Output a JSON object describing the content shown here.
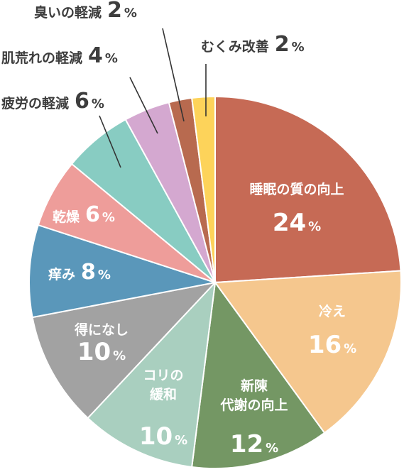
{
  "chart_data": {
    "type": "pie",
    "categories": [
      "睡眠の質の向上",
      "冷え",
      "新陳代謝の向上",
      "コリの緩和",
      "得になし",
      "痒み",
      "乾燥",
      "疲労の軽減",
      "肌荒れの軽減",
      "臭いの軽減",
      "むくみ改善"
    ],
    "values": [
      24,
      16,
      12,
      10,
      10,
      8,
      6,
      6,
      4,
      2,
      2
    ],
    "value_suffix": "%",
    "colors": [
      "#c66a55",
      "#f5c78e",
      "#749764",
      "#a9cfbf",
      "#a2a2a2",
      "#5a97ba",
      "#ee9d9a",
      "#88ccc2",
      "#d4a8d0",
      "#b86a4f",
      "#fdd35a"
    ],
    "start_angle_deg": 0,
    "direction": "clockwise",
    "slices": [
      {
        "name_lines": [
          "睡眠の質の向上"
        ],
        "value": "24",
        "unit": "%",
        "label_position": "inside"
      },
      {
        "name_lines": [
          "冷え"
        ],
        "value": "16",
        "unit": "%",
        "label_position": "inside"
      },
      {
        "name_lines": [
          "新陳",
          "代謝の向上"
        ],
        "value": "12",
        "unit": "%",
        "label_position": "inside"
      },
      {
        "name_lines": [
          "コリの",
          "緩和"
        ],
        "value": "10",
        "unit": "%",
        "label_position": "inside"
      },
      {
        "name_lines": [
          "得になし"
        ],
        "value": "10",
        "unit": "%",
        "label_position": "inside"
      },
      {
        "name_lines": [
          "痒み"
        ],
        "value": "8",
        "unit": "%",
        "label_position": "inside-inline"
      },
      {
        "name_lines": [
          "乾燥"
        ],
        "value": "6",
        "unit": "%",
        "label_position": "inside-inline"
      },
      {
        "name_lines": [
          "疲労の軽減"
        ],
        "value": "6",
        "unit": "%",
        "label_position": "outside"
      },
      {
        "name_lines": [
          "肌荒れの軽減"
        ],
        "value": "4",
        "unit": "%",
        "label_position": "outside"
      },
      {
        "name_lines": [
          "臭いの軽減"
        ],
        "value": "2",
        "unit": "%",
        "label_position": "outside"
      },
      {
        "name_lines": [
          "むくみ改善"
        ],
        "value": "2",
        "unit": "%",
        "label_position": "outside"
      }
    ],
    "title": "",
    "legend": "none"
  }
}
